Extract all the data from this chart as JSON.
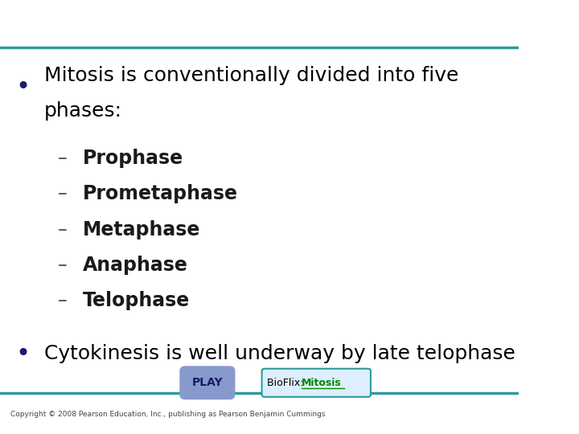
{
  "background_color": "#ffffff",
  "top_line_color": "#2e9b9b",
  "bottom_line_color": "#2e9b9b",
  "bullet_color": "#1a1a6e",
  "dash_color": "#555555",
  "bullet1_text_line1": "Mitosis is conventionally divided into five",
  "bullet1_text_line2": "phases:",
  "sub_items": [
    "Prophase",
    "Prometaphase",
    "Metaphase",
    "Anaphase",
    "Telophase"
  ],
  "sub_item_color": "#1a1a1a",
  "bullet2_text": "Cytokinesis is well underway by late telophase",
  "play_button_color": "#8899cc",
  "play_button_text": "PLAY",
  "play_button_text_color": "#1a1a6e",
  "bioflix_box_color": "#ddeeff",
  "bioflix_box_border": "#2e9b9b",
  "bioflix_text": "BioFlix: ",
  "bioflix_link": "Mitosis",
  "bioflix_link_color": "#008800",
  "bioflix_text_color": "#000000",
  "copyright_text": "Copyright © 2008 Pearson Education, Inc., publishing as Pearson Benjamin Cummings",
  "copyright_color": "#444444",
  "main_text_color": "#000000",
  "main_fontsize": 18,
  "sub_fontsize": 17,
  "bullet2_fontsize": 18
}
